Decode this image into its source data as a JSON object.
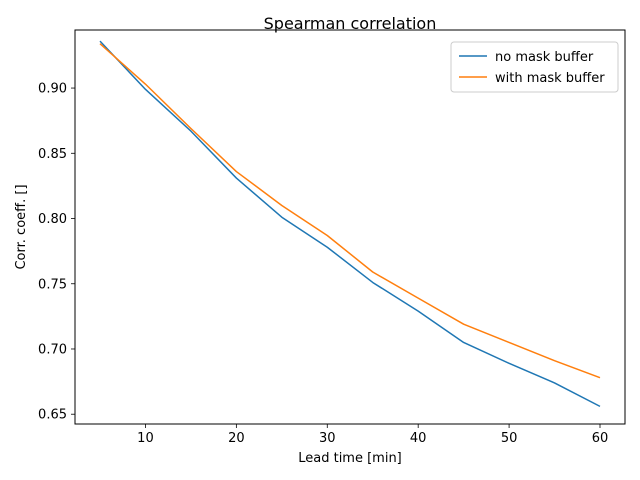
{
  "chart_data": {
    "type": "line",
    "title": "Spearman correlation",
    "xlabel": "Lead time [min]",
    "ylabel": "Corr. coeff. []",
    "xlim": [
      2.25,
      62.75
    ],
    "ylim": [
      0.6425,
      0.9445
    ],
    "xticks": [
      10,
      20,
      30,
      40,
      50,
      60
    ],
    "yticks": [
      0.65,
      0.7,
      0.75,
      0.8,
      0.85,
      0.9
    ],
    "ytick_labels": [
      "0.65",
      "0.70",
      "0.75",
      "0.80",
      "0.85",
      "0.90"
    ],
    "xtick_labels": [
      "10",
      "20",
      "30",
      "40",
      "50",
      "60"
    ],
    "x": [
      5,
      10,
      15,
      20,
      25,
      30,
      35,
      40,
      45,
      50,
      55,
      60
    ],
    "series": [
      {
        "name": "no mask buffer",
        "color": "#1f77b4",
        "values": [
          0.936,
          0.899,
          0.867,
          0.831,
          0.801,
          0.778,
          0.751,
          0.729,
          0.705,
          0.689,
          0.674,
          0.656
        ]
      },
      {
        "name": "with mask buffer",
        "color": "#ff7f0e",
        "values": [
          0.934,
          0.903,
          0.869,
          0.836,
          0.81,
          0.787,
          0.759,
          0.739,
          0.719,
          0.705,
          0.691,
          0.678
        ]
      }
    ],
    "legend_position": "top-right",
    "grid": false
  }
}
